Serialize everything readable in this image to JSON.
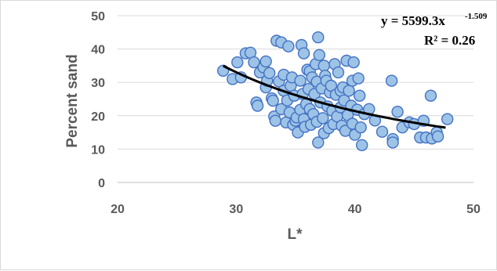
{
  "chart_data": {
    "type": "scatter",
    "title": "",
    "xlabel": "L*",
    "ylabel": "Percent sand",
    "xlim": [
      20,
      50
    ],
    "ylim": [
      0,
      50
    ],
    "xticks": [
      "20",
      "30",
      "40",
      "50"
    ],
    "yticks": [
      "0",
      "10",
      "20",
      "30",
      "40",
      "50"
    ],
    "grid": "horizontal",
    "marker_fill": "#9dc3e6",
    "marker_edge": "#4472c4",
    "trendline_color": "#000000",
    "trendline": {
      "type": "power",
      "coefficient": 5599.3,
      "exponent": -1.509,
      "equation_prefix": "y = 5599.3x",
      "equation_exponent": "-1.509",
      "r_squared_label": "R² = 0.26"
    },
    "series": [
      {
        "points": [
          [
            28.9,
            33.5
          ],
          [
            29.7,
            31.0
          ],
          [
            30.1,
            36.0
          ],
          [
            30.4,
            31.5
          ],
          [
            30.8,
            38.7
          ],
          [
            31.2,
            38.9
          ],
          [
            31.5,
            36.0
          ],
          [
            31.7,
            24.0
          ],
          [
            31.8,
            23.0
          ],
          [
            32.0,
            33.0
          ],
          [
            32.3,
            34.5
          ],
          [
            32.5,
            36.3
          ],
          [
            32.5,
            28.5
          ],
          [
            32.6,
            30.5
          ],
          [
            32.8,
            32.8
          ],
          [
            33.0,
            25.2
          ],
          [
            33.1,
            24.5
          ],
          [
            33.2,
            19.8
          ],
          [
            33.3,
            18.5
          ],
          [
            33.4,
            42.5
          ],
          [
            33.6,
            30.3
          ],
          [
            33.8,
            42.0
          ],
          [
            33.8,
            22.0
          ],
          [
            34.0,
            32.3
          ],
          [
            34.0,
            27.5
          ],
          [
            34.2,
            18.0
          ],
          [
            34.3,
            24.6
          ],
          [
            34.4,
            40.8
          ],
          [
            34.5,
            21.0
          ],
          [
            34.6,
            29.0
          ],
          [
            34.7,
            31.5
          ],
          [
            34.8,
            17.3
          ],
          [
            34.9,
            26.0
          ],
          [
            35.0,
            18.5
          ],
          [
            35.1,
            19.5
          ],
          [
            35.2,
            15.0
          ],
          [
            35.4,
            21.8
          ],
          [
            35.4,
            30.5
          ],
          [
            35.5,
            41.2
          ],
          [
            35.6,
            26.5
          ],
          [
            35.7,
            38.7
          ],
          [
            35.7,
            19.0
          ],
          [
            35.8,
            16.7
          ],
          [
            35.9,
            23.5
          ],
          [
            36.0,
            33.8
          ],
          [
            36.1,
            28.0
          ],
          [
            36.2,
            22.0
          ],
          [
            36.2,
            33.3
          ],
          [
            36.3,
            17.3
          ],
          [
            36.4,
            31.5
          ],
          [
            36.5,
            20.5
          ],
          [
            36.6,
            26.5
          ],
          [
            36.7,
            35.5
          ],
          [
            36.8,
            30.2
          ],
          [
            36.8,
            18.2
          ],
          [
            36.9,
            43.5
          ],
          [
            36.9,
            12.0
          ],
          [
            37.0,
            38.2
          ],
          [
            37.1,
            24.0
          ],
          [
            37.2,
            28.2
          ],
          [
            37.3,
            19.3
          ],
          [
            37.4,
            35.0
          ],
          [
            37.4,
            14.8
          ],
          [
            37.5,
            32.0
          ],
          [
            37.6,
            30.5
          ],
          [
            37.7,
            22.8
          ],
          [
            37.8,
            16.3
          ],
          [
            37.9,
            27.0
          ],
          [
            38.0,
            29.0
          ],
          [
            38.1,
            21.5
          ],
          [
            38.2,
            17.5
          ],
          [
            38.3,
            35.5
          ],
          [
            38.4,
            26.3
          ],
          [
            38.5,
            19.8
          ],
          [
            38.6,
            33.0
          ],
          [
            38.8,
            27.5
          ],
          [
            38.8,
            22.5
          ],
          [
            38.9,
            17.0
          ],
          [
            39.0,
            28.5
          ],
          [
            39.1,
            24.6
          ],
          [
            39.2,
            15.5
          ],
          [
            39.3,
            36.5
          ],
          [
            39.4,
            20.2
          ],
          [
            39.5,
            27.5
          ],
          [
            39.7,
            23.0
          ],
          [
            39.8,
            30.5
          ],
          [
            39.8,
            17.6
          ],
          [
            39.9,
            36.0
          ],
          [
            40.0,
            14.3
          ],
          [
            40.2,
            21.8
          ],
          [
            40.3,
            31.2
          ],
          [
            40.4,
            26.0
          ],
          [
            40.5,
            16.5
          ],
          [
            40.6,
            11.2
          ],
          [
            40.8,
            20.5
          ],
          [
            41.2,
            22.0
          ],
          [
            41.7,
            18.6
          ],
          [
            42.3,
            15.2
          ],
          [
            43.1,
            30.5
          ],
          [
            43.2,
            13.0
          ],
          [
            43.2,
            12.0
          ],
          [
            43.6,
            21.2
          ],
          [
            44.0,
            16.5
          ],
          [
            44.6,
            18.0
          ],
          [
            45.0,
            17.5
          ],
          [
            45.5,
            13.5
          ],
          [
            45.8,
            18.5
          ],
          [
            46.0,
            13.5
          ],
          [
            46.4,
            26.0
          ],
          [
            46.5,
            13.2
          ],
          [
            46.9,
            15.0
          ],
          [
            47.0,
            13.8
          ],
          [
            47.8,
            19.0
          ]
        ]
      }
    ]
  }
}
